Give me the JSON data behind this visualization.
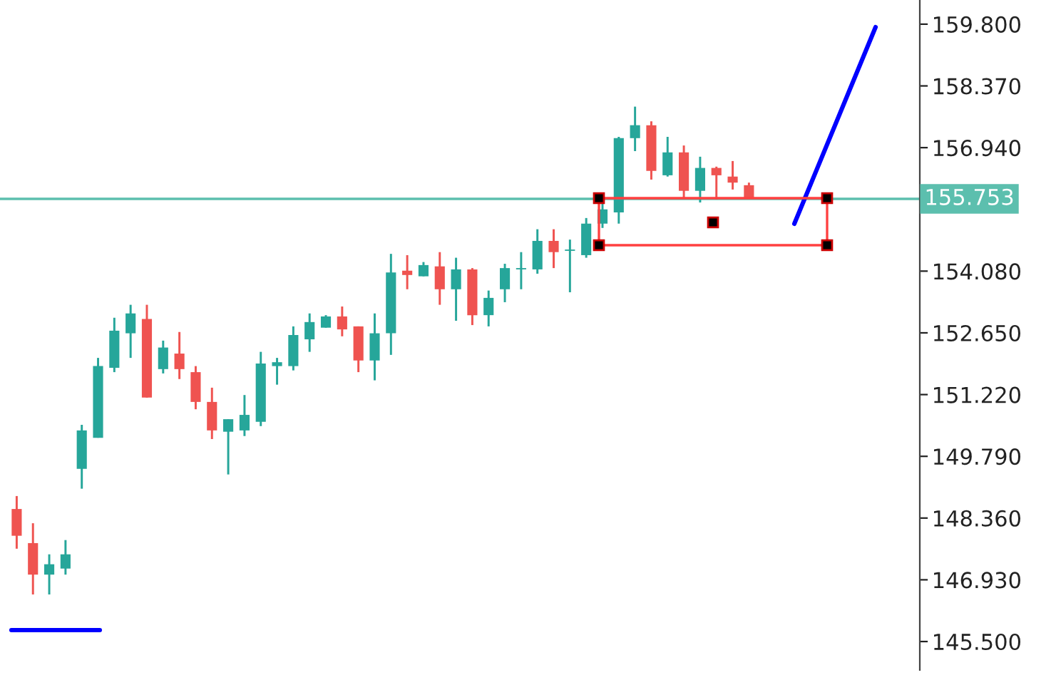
{
  "chart_data": {
    "type": "candlestick",
    "categories": [
      null,
      null,
      null,
      null,
      null,
      null,
      null,
      null,
      null,
      null,
      null,
      null,
      null,
      null,
      null,
      null,
      null,
      null,
      null,
      null,
      null,
      null,
      null,
      null,
      null,
      null,
      null,
      null,
      null,
      null,
      null,
      null,
      null,
      null,
      null,
      null,
      null,
      null,
      null,
      null,
      null,
      null,
      null,
      null,
      null,
      null,
      null,
      null,
      null,
      null,
      null,
      null,
      null,
      null,
      null,
      null
    ],
    "ohlc": [
      [
        148.57,
        148.87,
        147.65,
        147.95
      ],
      [
        147.78,
        148.24,
        146.59,
        147.05
      ],
      [
        147.05,
        147.52,
        146.59,
        147.29
      ],
      [
        147.19,
        147.85,
        147.05,
        147.52
      ],
      [
        149.5,
        150.52,
        149.04,
        150.39
      ],
      [
        150.22,
        152.07,
        150.22,
        151.88
      ],
      [
        151.84,
        153.0,
        151.74,
        152.7
      ],
      [
        152.64,
        153.3,
        152.07,
        153.1
      ],
      [
        152.97,
        153.3,
        151.15,
        151.15
      ],
      [
        151.81,
        152.47,
        151.71,
        152.31
      ],
      [
        152.17,
        152.67,
        151.58,
        151.81
      ],
      [
        151.74,
        151.88,
        150.88,
        151.05
      ],
      [
        151.05,
        151.38,
        150.19,
        150.39
      ],
      [
        150.36,
        150.65,
        149.37,
        150.65
      ],
      [
        150.39,
        151.21,
        150.26,
        150.75
      ],
      [
        150.59,
        152.21,
        150.49,
        151.94
      ],
      [
        151.88,
        152.07,
        151.45,
        151.97
      ],
      [
        151.88,
        152.8,
        151.78,
        152.6
      ],
      [
        152.5,
        153.1,
        152.21,
        152.9
      ],
      [
        152.77,
        153.06,
        152.77,
        153.03
      ],
      [
        153.03,
        153.26,
        152.57,
        152.73
      ],
      [
        152.8,
        152.8,
        151.74,
        152.01
      ],
      [
        152.01,
        153.1,
        151.55,
        152.64
      ],
      [
        152.64,
        154.48,
        152.14,
        154.05
      ],
      [
        154.09,
        154.45,
        153.66,
        153.99
      ],
      [
        153.96,
        154.29,
        153.96,
        154.22
      ],
      [
        154.19,
        154.52,
        153.3,
        153.66
      ],
      [
        153.66,
        154.39,
        152.93,
        154.12
      ],
      [
        154.12,
        154.15,
        152.83,
        153.06
      ],
      [
        153.06,
        153.63,
        152.8,
        153.46
      ],
      [
        153.66,
        154.25,
        153.36,
        154.15
      ],
      [
        154.12,
        154.52,
        153.66,
        154.15
      ],
      [
        154.12,
        155.05,
        154.02,
        154.78
      ],
      [
        154.78,
        155.05,
        154.15,
        154.52
      ],
      [
        154.55,
        154.81,
        153.59,
        154.58
      ],
      [
        154.45,
        155.31,
        154.39,
        155.18
      ],
      [
        155.18,
        155.64,
        155.08,
        155.51
      ],
      [
        155.44,
        157.19,
        155.18,
        157.16
      ],
      [
        157.16,
        157.89,
        156.86,
        157.46
      ],
      [
        157.46,
        157.55,
        156.2,
        156.4
      ],
      [
        156.3,
        157.19,
        156.27,
        156.83
      ],
      [
        156.83,
        156.99,
        155.77,
        155.94
      ],
      [
        155.94,
        156.73,
        155.67,
        156.47
      ],
      [
        156.47,
        156.5,
        155.74,
        156.3
      ],
      [
        156.27,
        156.63,
        155.97,
        156.13
      ],
      [
        156.07,
        156.13,
        155.77,
        155.77
      ],
      null,
      null,
      null,
      null,
      null,
      null,
      null,
      null,
      null,
      null
    ],
    "colors": [
      "#ef5350",
      "#ef5350",
      "#26a69a",
      "#26a69a",
      "#26a69a",
      "#26a69a",
      "#26a69a",
      "#26a69a",
      "#ef5350",
      "#26a69a",
      "#ef5350",
      "#ef5350",
      "#ef5350",
      "#26a69a",
      "#26a69a",
      "#26a69a",
      "#26a69a",
      "#26a69a",
      "#26a69a",
      "#26a69a",
      "#ef5350",
      "#ef5350",
      "#26a69a",
      "#26a69a",
      "#ef5350",
      "#26a69a",
      "#ef5350",
      "#26a69a",
      "#ef5350",
      "#26a69a",
      "#26a69a",
      "#26a69a",
      "#26a69a",
      "#ef5350",
      "#26a69a",
      "#26a69a",
      "#26a69a",
      "#26a69a",
      "#26a69a",
      "#ef5350",
      "#26a69a",
      "#ef5350",
      "#26a69a",
      "#ef5350",
      "#ef5350",
      "#ef5350",
      null,
      null,
      null,
      null,
      null,
      null,
      null,
      null,
      null,
      null
    ],
    "ref_lines": [
      {
        "axis": "y",
        "value": 155.753,
        "label": "155.753",
        "color": "#5cbfae"
      }
    ],
    "ylim": [
      144.84,
      160.36
    ],
    "yticks": [
      {
        "value": 145.5,
        "label": "145.500"
      },
      {
        "value": 146.93,
        "label": "146.930"
      },
      {
        "value": 148.36,
        "label": "148.360"
      },
      {
        "value": 149.79,
        "label": "149.790"
      },
      {
        "value": 151.22,
        "label": "151.220"
      },
      {
        "value": 152.65,
        "label": "152.650"
      },
      {
        "value": 154.08,
        "label": "154.080"
      },
      {
        "value": 155.51,
        "label": null
      },
      {
        "value": 156.94,
        "label": "156.940"
      },
      {
        "value": 158.37,
        "label": "158.370"
      },
      {
        "value": 159.8,
        "label": "159.800"
      }
    ],
    "tick_labels": "y"
  }
}
